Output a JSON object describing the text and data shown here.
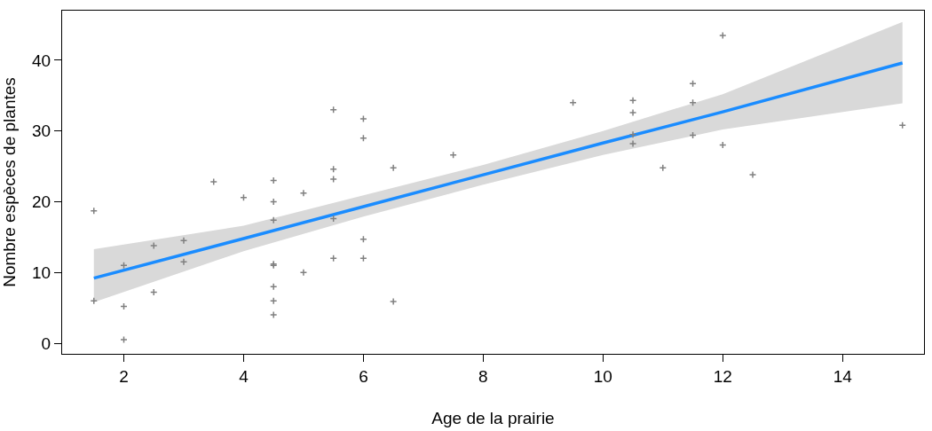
{
  "chart_data": {
    "type": "scatter",
    "xlabel": "Age de la prairie",
    "ylabel": "Nombre espèces de plantes",
    "xlim": [
      0.97,
      15.36
    ],
    "xticks": [
      2,
      4,
      6,
      8,
      10,
      12,
      14
    ],
    "ylim": [
      -1.5,
      47
    ],
    "yticks": [
      0,
      10,
      20,
      30,
      40
    ],
    "marker": "cross",
    "series": [
      {
        "color": "#808080",
        "x": [
          1.5,
          1.5,
          2,
          2,
          2,
          2.5,
          2.5,
          3,
          3,
          3.5,
          4,
          4.5,
          4.5,
          4.5,
          4.5,
          4.5,
          4.5,
          4.5,
          4.5,
          5,
          5,
          5.5,
          5.5,
          5.5,
          5.5,
          5.5,
          6,
          6,
          6,
          6,
          6.5,
          6.5,
          7.5,
          9.5,
          10.5,
          10.5,
          10.5,
          10.5,
          11,
          11.5,
          11.5,
          11.5,
          12,
          12,
          12.5,
          15
        ],
        "values": [
          18.7,
          6,
          11,
          5.2,
          0.5,
          13.8,
          7.2,
          14.5,
          11.5,
          22.8,
          20.6,
          23,
          20,
          17.4,
          11.2,
          11,
          8,
          6,
          4,
          21.2,
          10,
          33,
          24.6,
          23.2,
          17.6,
          12,
          31.7,
          29,
          14.7,
          12,
          24.8,
          5.9,
          26.6,
          34,
          34.3,
          32.6,
          29.5,
          28.2,
          24.8,
          36.7,
          34,
          29.4,
          43.5,
          28,
          23.8,
          30.8
        ]
      },
      {
        "type": "line",
        "color": "#1a8cff",
        "marker": "none",
        "line_style": "solid",
        "x": [
          1.5,
          4,
          6,
          8,
          10,
          12,
          15
        ],
        "values": [
          9.2,
          14.8,
          19.3,
          23.8,
          28.3,
          32.7,
          39.6
        ],
        "lower": [
          5.8,
          13,
          17.9,
          22.4,
          26.6,
          30.2,
          33.9
        ],
        "upper": [
          13.3,
          16.6,
          20.9,
          25.2,
          30,
          35.2,
          45.4
        ]
      }
    ]
  }
}
